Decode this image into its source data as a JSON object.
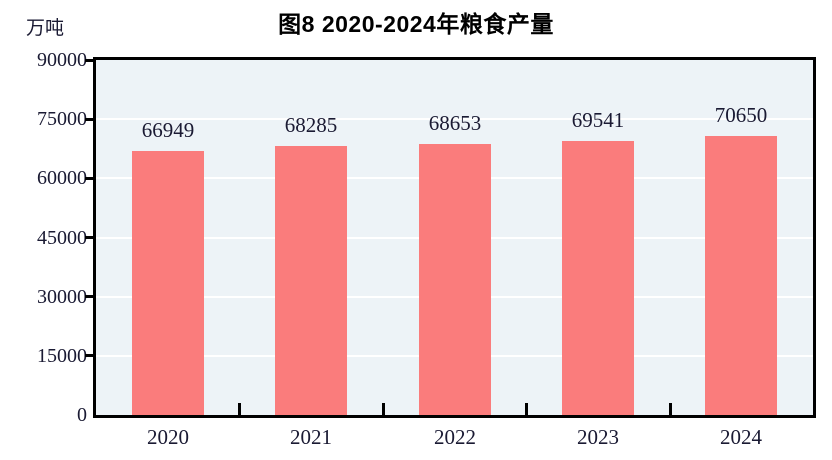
{
  "chart_data": {
    "type": "bar",
    "title": "图8  2020-2024年粮食产量",
    "unit_label": "万吨",
    "categories": [
      "2020",
      "2021",
      "2022",
      "2023",
      "2024"
    ],
    "values": [
      66949,
      68285,
      68653,
      69541,
      70650
    ],
    "data_labels": [
      "66949",
      "68285",
      "68653",
      "69541",
      "70650"
    ],
    "ylim": [
      0,
      90000
    ],
    "yticks": [
      0,
      15000,
      30000,
      45000,
      60000,
      75000,
      90000
    ],
    "grid": true,
    "legend": "none",
    "colors": {
      "bar_fill": "#FA7C7C",
      "plot_background": "#EDF3F7",
      "gridline": "#FFFFFF",
      "axis": "#000000",
      "label_text": "#1A1A33"
    }
  }
}
